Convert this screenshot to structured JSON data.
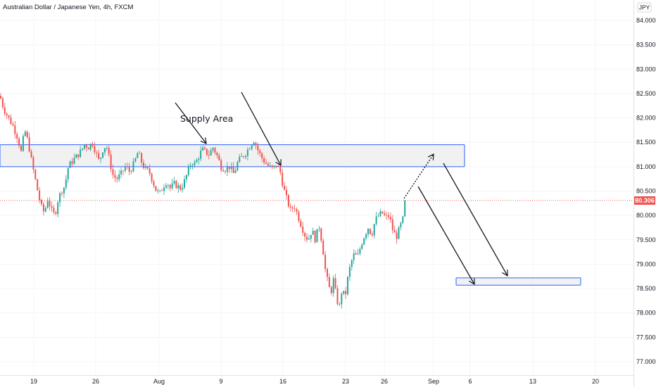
{
  "chart_data": {
    "type": "candlestick",
    "title": "Australian Dollar / Japanese Yen, 4h, FXCM",
    "currency": "JPY",
    "y_ticks": [
      "84.000",
      "83.500",
      "83.000",
      "82.500",
      "82.000",
      "81.500",
      "81.000",
      "80.500",
      "80.000",
      "79.500",
      "79.000",
      "78.500",
      "78.000",
      "77.500",
      "77.000"
    ],
    "y_tick_values": [
      84.0,
      83.5,
      83.0,
      82.5,
      82.0,
      81.5,
      81.0,
      80.5,
      80.0,
      79.5,
      79.0,
      78.5,
      78.0,
      77.5,
      77.0
    ],
    "x_ticks": [
      "19",
      "26",
      "Aug",
      "9",
      "16",
      "23",
      "26",
      "Sep",
      "6",
      "13",
      "20"
    ],
    "ylim": [
      76.75,
      84.2
    ],
    "current_price": 80.306,
    "current_price_label": "80.306",
    "annotation_text": "Supply Area",
    "supply_zone": [
      81.0,
      81.45
    ],
    "target_zone": [
      78.57,
      78.72
    ],
    "bullish_color": "#26a69a",
    "bearish_color": "#ef5350",
    "zone_stroke": "#2962ff",
    "zone_fill": "#eeeeee",
    "price_path": [
      [
        0,
        82.45
      ],
      [
        5,
        82.2
      ],
      [
        12,
        82.0
      ],
      [
        18,
        81.85
      ],
      [
        25,
        81.6
      ],
      [
        30,
        81.3
      ],
      [
        35,
        81.75
      ],
      [
        40,
        81.5
      ],
      [
        45,
        81.1
      ],
      [
        52,
        80.6
      ],
      [
        58,
        80.2
      ],
      [
        63,
        80.05
      ],
      [
        68,
        80.35
      ],
      [
        73,
        80.1
      ],
      [
        78,
        80.0
      ],
      [
        82,
        80.3
      ],
      [
        87,
        80.5
      ],
      [
        92,
        80.6
      ],
      [
        97,
        81.0
      ],
      [
        102,
        81.1
      ],
      [
        108,
        81.2
      ],
      [
        114,
        81.3
      ],
      [
        120,
        81.45
      ],
      [
        126,
        81.4
      ],
      [
        131,
        81.5
      ],
      [
        136,
        81.3
      ],
      [
        141,
        81.1
      ],
      [
        146,
        81.35
      ],
      [
        151,
        81.45
      ],
      [
        156,
        81.1
      ],
      [
        161,
        80.8
      ],
      [
        166,
        80.75
      ],
      [
        172,
        80.85
      ],
      [
        178,
        81.0
      ],
      [
        184,
        80.9
      ],
      [
        190,
        81.05
      ],
      [
        196,
        81.3
      ],
      [
        201,
        81.1
      ],
      [
        206,
        80.95
      ],
      [
        212,
        80.9
      ],
      [
        217,
        80.7
      ],
      [
        222,
        80.5
      ],
      [
        227,
        80.45
      ],
      [
        232,
        80.6
      ],
      [
        237,
        80.7
      ],
      [
        242,
        80.55
      ],
      [
        247,
        80.65
      ],
      [
        252,
        80.6
      ],
      [
        257,
        80.55
      ],
      [
        262,
        80.7
      ],
      [
        267,
        80.9
      ],
      [
        272,
        81.1
      ],
      [
        277,
        81.05
      ],
      [
        282,
        81.2
      ],
      [
        287,
        81.35
      ],
      [
        292,
        81.3
      ],
      [
        297,
        81.25
      ],
      [
        303,
        81.4
      ],
      [
        309,
        81.2
      ],
      [
        314,
        81.0
      ],
      [
        320,
        80.95
      ],
      [
        326,
        81.0
      ],
      [
        332,
        80.85
      ],
      [
        338,
        81.1
      ],
      [
        344,
        81.2
      ],
      [
        350,
        81.3
      ],
      [
        356,
        81.45
      ],
      [
        361,
        81.55
      ],
      [
        366,
        81.35
      ],
      [
        371,
        81.2
      ],
      [
        376,
        81.1
      ],
      [
        382,
        81.0
      ],
      [
        388,
        80.95
      ],
      [
        393,
        81.05
      ],
      [
        398,
        80.9
      ],
      [
        403,
        80.55
      ],
      [
        408,
        80.3
      ],
      [
        413,
        80.1
      ],
      [
        418,
        80.2
      ],
      [
        423,
        80.0
      ],
      [
        428,
        79.8
      ],
      [
        433,
        79.6
      ],
      [
        438,
        79.5
      ],
      [
        443,
        79.7
      ],
      [
        448,
        79.5
      ],
      [
        453,
        79.8
      ],
      [
        458,
        79.4
      ],
      [
        462,
        78.9
      ],
      [
        466,
        78.6
      ],
      [
        470,
        78.4
      ],
      [
        474,
        78.7
      ],
      [
        478,
        78.3
      ],
      [
        482,
        78.1
      ],
      [
        486,
        78.5
      ],
      [
        490,
        78.3
      ],
      [
        494,
        78.7
      ],
      [
        498,
        79.0
      ],
      [
        503,
        79.2
      ],
      [
        508,
        79.15
      ],
      [
        513,
        79.4
      ],
      [
        518,
        79.6
      ],
      [
        523,
        79.75
      ],
      [
        528,
        79.6
      ],
      [
        533,
        79.9
      ],
      [
        538,
        80.0
      ],
      [
        543,
        80.05
      ],
      [
        548,
        79.95
      ],
      [
        553,
        80.0
      ],
      [
        558,
        79.7
      ],
      [
        563,
        79.55
      ],
      [
        568,
        79.75
      ],
      [
        573,
        79.95
      ],
      [
        577,
        80.3
      ]
    ],
    "arrows": [
      {
        "from": [
          249,
          146
        ],
        "to": [
          293,
          204
        ],
        "dashed": false
      },
      {
        "from": [
          343,
          131
        ],
        "to": [
          399,
          235
        ],
        "dashed": false
      },
      {
        "from": [
          574,
          282
        ],
        "to": [
          616,
          219
        ],
        "dashed": true
      },
      {
        "from": [
          594,
          265
        ],
        "to": [
          674,
          404
        ],
        "dashed": false
      },
      {
        "from": [
          630,
          232
        ],
        "to": [
          721,
          392
        ],
        "dashed": false
      }
    ]
  }
}
